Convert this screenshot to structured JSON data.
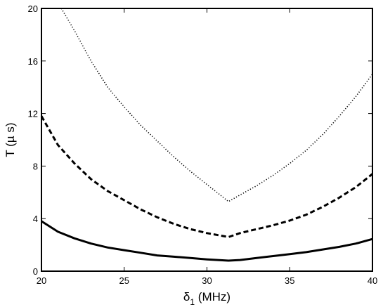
{
  "chart_data": {
    "type": "line",
    "xlabel": {
      "symbol": "δ",
      "subscript": "1",
      "rest": " (MHz)"
    },
    "ylabel": "T (µ s)",
    "xlim": [
      20,
      40
    ],
    "ylim": [
      0,
      20
    ],
    "xticks": [
      20,
      25,
      30,
      35,
      40
    ],
    "yticks": [
      0,
      4,
      8,
      12,
      16,
      20
    ],
    "grid": false,
    "legend": "none",
    "series": [
      {
        "style": "solid",
        "color": "#000000",
        "x": [
          20,
          21,
          22,
          23,
          24,
          25,
          26,
          27,
          28,
          29,
          30,
          31.3,
          32,
          33,
          34,
          35,
          36,
          37,
          38,
          39,
          40
        ],
        "y": [
          3.8,
          3.0,
          2.5,
          2.1,
          1.8,
          1.6,
          1.4,
          1.2,
          1.1,
          1.0,
          0.9,
          0.8,
          0.85,
          1.0,
          1.15,
          1.3,
          1.45,
          1.65,
          1.85,
          2.1,
          2.45
        ]
      },
      {
        "style": "dashed",
        "color": "#000000",
        "x": [
          20,
          21,
          22,
          23,
          24,
          25,
          26,
          27,
          28,
          29,
          30,
          31.3,
          32,
          33,
          34,
          35,
          36,
          37,
          38,
          39,
          40
        ],
        "y": [
          11.8,
          9.6,
          8.2,
          7.0,
          6.1,
          5.4,
          4.7,
          4.1,
          3.6,
          3.2,
          2.9,
          2.6,
          2.9,
          3.2,
          3.5,
          3.85,
          4.3,
          4.9,
          5.6,
          6.4,
          7.4
        ]
      },
      {
        "style": "dotted",
        "color": "#000000",
        "x": [
          21.2,
          22,
          23,
          24,
          25,
          26,
          27,
          28,
          29,
          30,
          31.3,
          32,
          33,
          34,
          35,
          36,
          37,
          38,
          39,
          40
        ],
        "y": [
          20,
          18.3,
          16.0,
          14.0,
          12.5,
          11.1,
          9.9,
          8.7,
          7.6,
          6.6,
          5.3,
          5.8,
          6.5,
          7.3,
          8.2,
          9.2,
          10.4,
          11.8,
          13.3,
          15.0
        ]
      }
    ]
  }
}
